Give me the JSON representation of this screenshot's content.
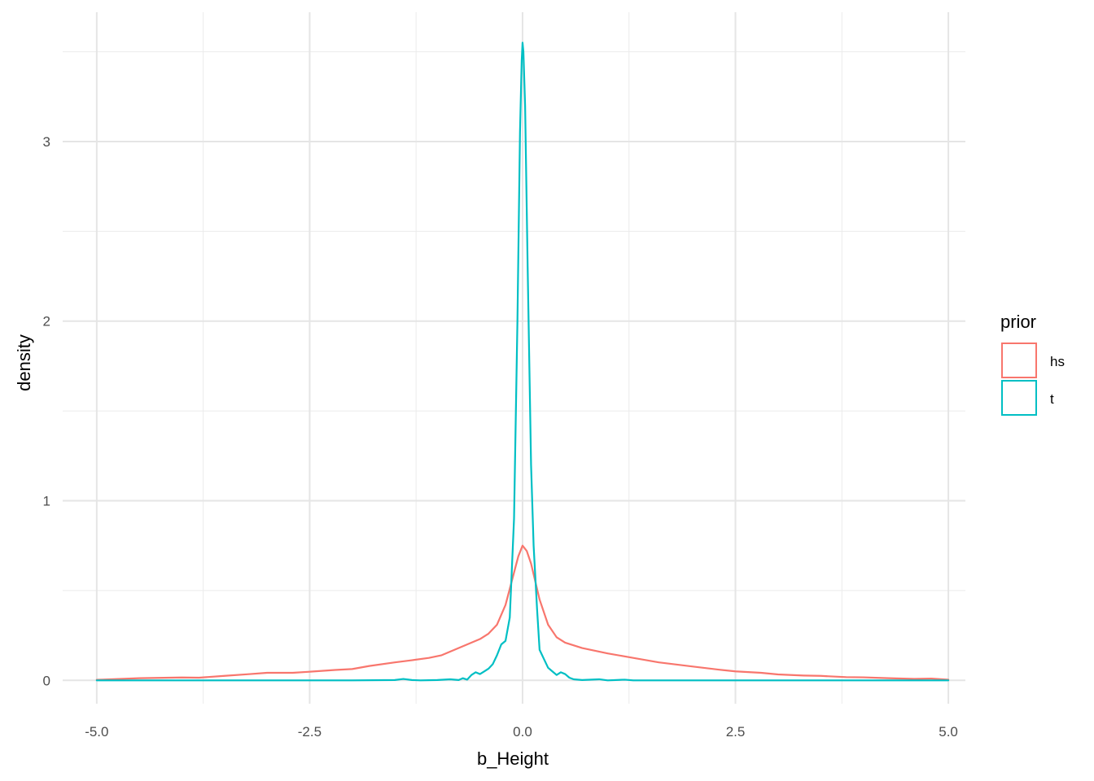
{
  "chart_data": {
    "type": "line",
    "title": "",
    "xlabel": "b_Height",
    "ylabel": "density",
    "xlim": [
      -5.4,
      5.2
    ],
    "ylim": [
      -0.13,
      3.72
    ],
    "x_ticks": [
      -5.0,
      -2.5,
      0.0,
      2.5,
      5.0
    ],
    "x_tick_labels": [
      "-5.0",
      "-2.5",
      "0.0",
      "2.5",
      "5.0"
    ],
    "y_ticks": [
      0,
      1,
      2,
      3
    ],
    "y_tick_labels": [
      "0",
      "1",
      "2",
      "3"
    ],
    "grid": true,
    "legend": {
      "title": "prior",
      "placement": "right"
    },
    "series": [
      {
        "name": "hs",
        "color": "#F8766D",
        "points": [
          [
            -5.0,
            0.003
          ],
          [
            -4.5,
            0.012
          ],
          [
            -4.0,
            0.016
          ],
          [
            -3.8,
            0.015
          ],
          [
            -3.5,
            0.025
          ],
          [
            -3.2,
            0.035
          ],
          [
            -3.0,
            0.042
          ],
          [
            -2.7,
            0.042
          ],
          [
            -2.5,
            0.048
          ],
          [
            -2.2,
            0.058
          ],
          [
            -2.0,
            0.063
          ],
          [
            -1.8,
            0.08
          ],
          [
            -1.5,
            0.1
          ],
          [
            -1.3,
            0.112
          ],
          [
            -1.1,
            0.125
          ],
          [
            -0.95,
            0.14
          ],
          [
            -0.8,
            0.17
          ],
          [
            -0.65,
            0.2
          ],
          [
            -0.5,
            0.23
          ],
          [
            -0.4,
            0.26
          ],
          [
            -0.3,
            0.31
          ],
          [
            -0.2,
            0.42
          ],
          [
            -0.1,
            0.6
          ],
          [
            -0.05,
            0.69
          ],
          [
            0.0,
            0.75
          ],
          [
            0.05,
            0.72
          ],
          [
            0.1,
            0.65
          ],
          [
            0.2,
            0.45
          ],
          [
            0.3,
            0.31
          ],
          [
            0.4,
            0.24
          ],
          [
            0.5,
            0.21
          ],
          [
            0.7,
            0.18
          ],
          [
            1.0,
            0.15
          ],
          [
            1.3,
            0.125
          ],
          [
            1.6,
            0.1
          ],
          [
            2.0,
            0.077
          ],
          [
            2.3,
            0.06
          ],
          [
            2.5,
            0.05
          ],
          [
            2.8,
            0.042
          ],
          [
            3.0,
            0.033
          ],
          [
            3.3,
            0.027
          ],
          [
            3.5,
            0.025
          ],
          [
            3.8,
            0.018
          ],
          [
            4.0,
            0.017
          ],
          [
            4.3,
            0.012
          ],
          [
            4.6,
            0.008
          ],
          [
            4.8,
            0.01
          ],
          [
            5.0,
            0.004
          ]
        ]
      },
      {
        "name": "t",
        "color": "#00BFC4",
        "points": [
          [
            -5.0,
            0.0
          ],
          [
            -2.0,
            0.0
          ],
          [
            -1.5,
            0.002
          ],
          [
            -1.4,
            0.008
          ],
          [
            -1.3,
            0.002
          ],
          [
            -1.2,
            0.0
          ],
          [
            -1.0,
            0.002
          ],
          [
            -0.85,
            0.006
          ],
          [
            -0.75,
            0.002
          ],
          [
            -0.7,
            0.012
          ],
          [
            -0.65,
            0.004
          ],
          [
            -0.6,
            0.03
          ],
          [
            -0.55,
            0.045
          ],
          [
            -0.5,
            0.035
          ],
          [
            -0.45,
            0.05
          ],
          [
            -0.4,
            0.065
          ],
          [
            -0.35,
            0.09
          ],
          [
            -0.3,
            0.14
          ],
          [
            -0.25,
            0.2
          ],
          [
            -0.2,
            0.22
          ],
          [
            -0.15,
            0.35
          ],
          [
            -0.1,
            0.9
          ],
          [
            -0.06,
            2.0
          ],
          [
            -0.03,
            3.05
          ],
          [
            -0.01,
            3.45
          ],
          [
            0.0,
            3.55
          ],
          [
            0.01,
            3.5
          ],
          [
            0.03,
            3.2
          ],
          [
            0.06,
            2.3
          ],
          [
            0.1,
            1.2
          ],
          [
            0.13,
            0.75
          ],
          [
            0.17,
            0.4
          ],
          [
            0.2,
            0.17
          ],
          [
            0.25,
            0.12
          ],
          [
            0.3,
            0.07
          ],
          [
            0.35,
            0.05
          ],
          [
            0.4,
            0.03
          ],
          [
            0.45,
            0.045
          ],
          [
            0.5,
            0.035
          ],
          [
            0.55,
            0.015
          ],
          [
            0.6,
            0.006
          ],
          [
            0.7,
            0.002
          ],
          [
            0.9,
            0.006
          ],
          [
            1.0,
            0.0
          ],
          [
            1.2,
            0.004
          ],
          [
            1.3,
            0.0
          ],
          [
            5.0,
            0.0
          ]
        ]
      }
    ]
  }
}
